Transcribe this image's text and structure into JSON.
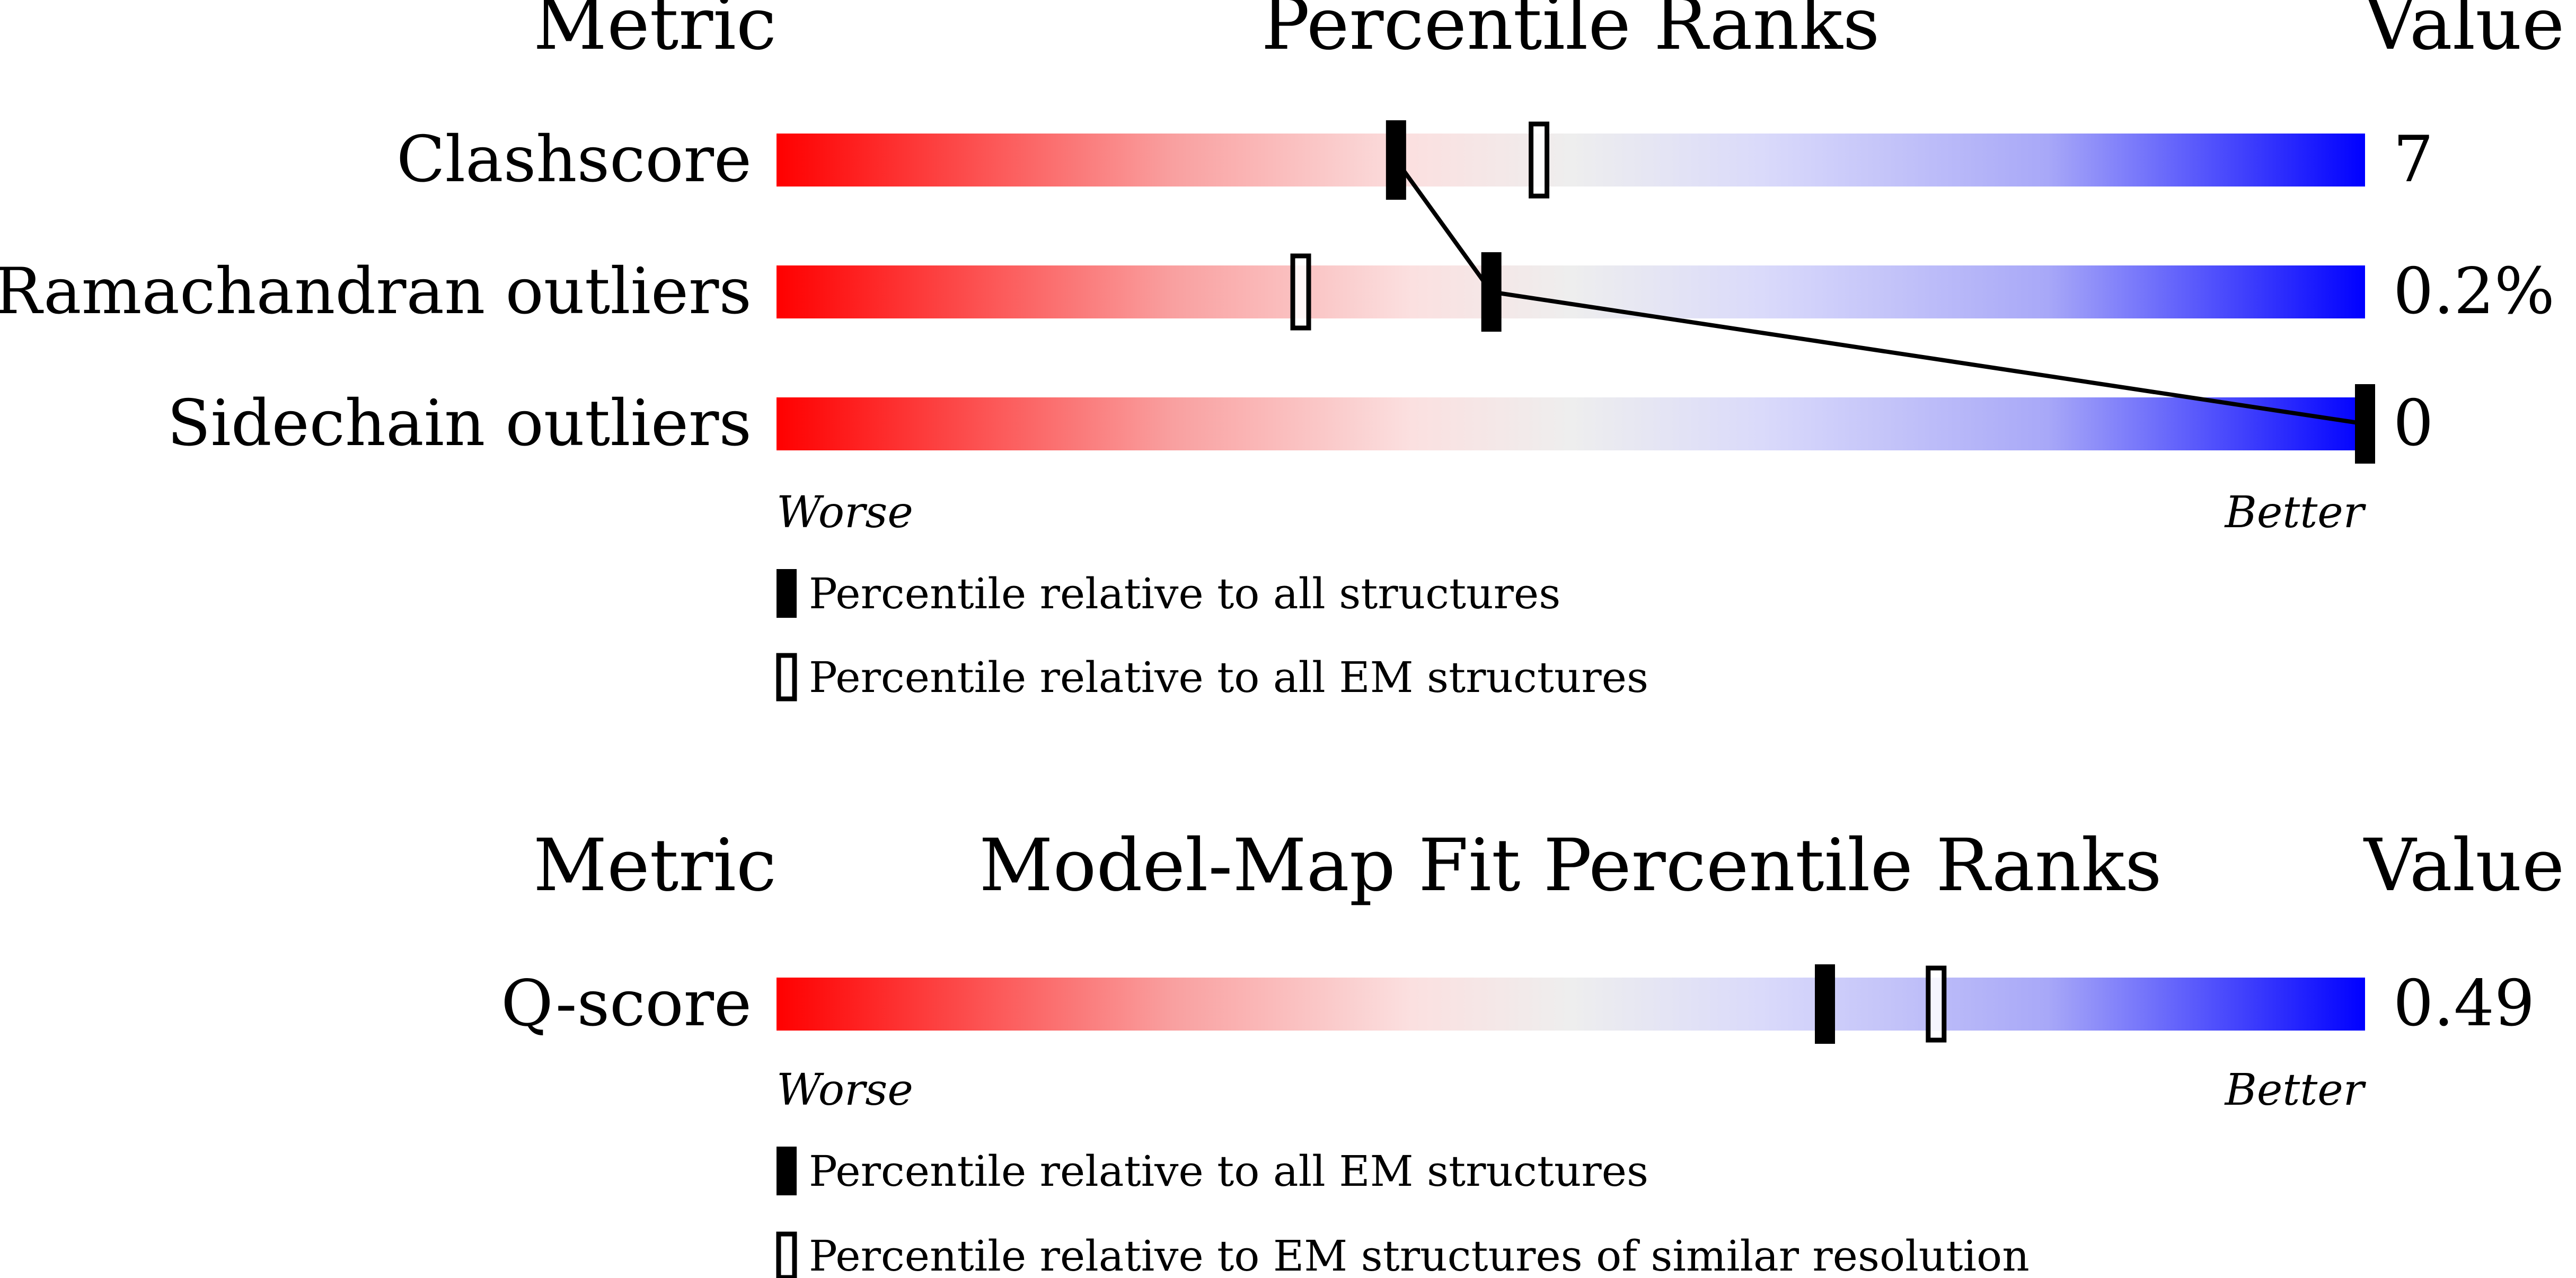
{
  "panels": [
    {
      "header_metric": "Metric",
      "header_title": "Percentile Ranks",
      "header_value": "Value",
      "rows": [
        {
          "label": "Clashscore",
          "value": "7"
        },
        {
          "label": "Ramachandran outliers",
          "value": "0.2%"
        },
        {
          "label": "Sidechain outliers",
          "value": "0"
        }
      ],
      "worse_label": "Worse",
      "better_label": "Better",
      "legend": [
        {
          "marker": "filled",
          "text": "Percentile relative to all structures"
        },
        {
          "marker": "open",
          "text": "Percentile relative to all EM structures"
        }
      ]
    },
    {
      "header_metric": "Metric",
      "header_title": "Model-Map Fit Percentile Ranks",
      "header_value": "Value",
      "rows": [
        {
          "label": "Q-score",
          "value": "0.49"
        }
      ],
      "worse_label": "Worse",
      "better_label": "Better",
      "legend": [
        {
          "marker": "filled",
          "text": "Percentile relative to all EM structures"
        },
        {
          "marker": "open",
          "text": "Percentile relative to EM structures of similar resolution"
        }
      ]
    }
  ],
  "colors": {
    "worse": "#ff0000",
    "middle": "#eeeeee",
    "better": "#0000ff",
    "marker": "#000000"
  },
  "chart_data": [
    {
      "type": "percentile-slider",
      "title": "Percentile Ranks",
      "xlabel": "",
      "xlim": [
        0,
        100
      ],
      "series": [
        {
          "name": "Percentile relative to all structures",
          "marker": "filled",
          "values": [
            39,
            45,
            100
          ]
        },
        {
          "name": "Percentile relative to all EM structures",
          "marker": "open",
          "values": [
            48,
            33,
            null
          ]
        }
      ],
      "categories": [
        "Clashscore",
        "Ramachandran outliers",
        "Sidechain outliers"
      ],
      "connect_filled_markers": true
    },
    {
      "type": "percentile-slider",
      "title": "Model-Map Fit Percentile Ranks",
      "xlabel": "",
      "xlim": [
        0,
        100
      ],
      "series": [
        {
          "name": "Percentile relative to all EM structures",
          "marker": "filled",
          "values": [
            66
          ]
        },
        {
          "name": "Percentile relative to EM structures of similar resolution",
          "marker": "open",
          "values": [
            73
          ]
        }
      ],
      "categories": [
        "Q-score"
      ],
      "connect_filled_markers": false
    }
  ]
}
